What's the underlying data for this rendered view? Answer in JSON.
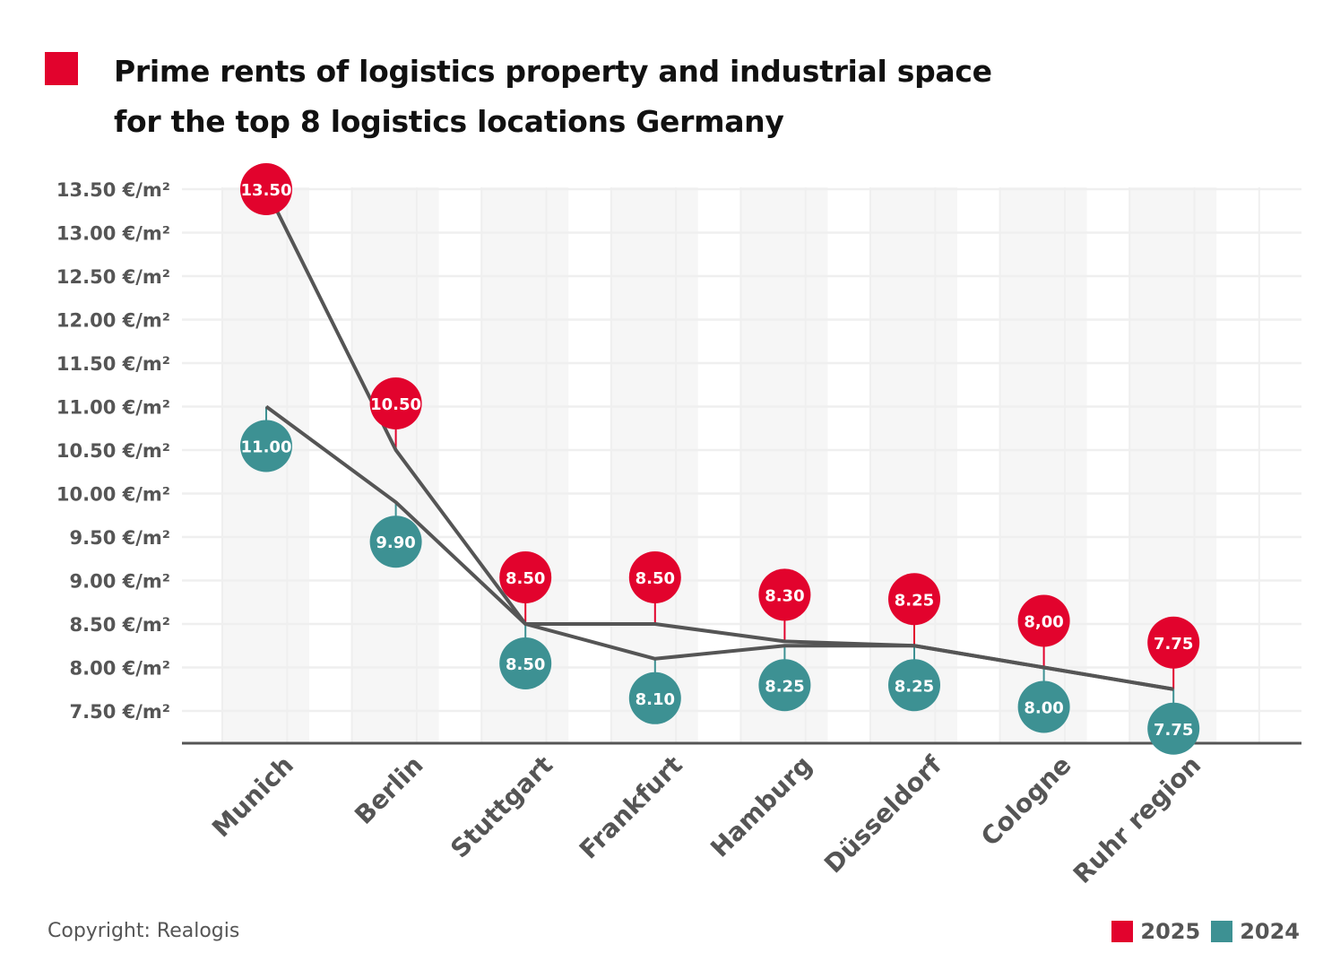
{
  "header": {
    "title_line1": "Prime rents of logistics property and industrial space",
    "title_line2": "for the top 8 logistics locations Germany"
  },
  "footer": {
    "copyright": "Copyright: Realogis"
  },
  "colors": {
    "accent_2025": "#e2032d",
    "accent_2024": "#3d9193",
    "line": "#555555",
    "axis_text": "#555555",
    "band": "#f6f6f6",
    "grid": "#efefef"
  },
  "legend": [
    {
      "label": "2025",
      "color": "#e2032d"
    },
    {
      "label": "2024",
      "color": "#3d9193"
    }
  ],
  "chart_data": {
    "type": "line",
    "title": "Prime rents of logistics property and industrial space for the top 8 logistics locations Germany",
    "xlabel": "",
    "ylabel": "",
    "categories": [
      "Munich",
      "Berlin",
      "Stuttgart",
      "Frankfurt",
      "Hamburg",
      "Düsseldorf",
      "Cologne",
      "Ruhr region"
    ],
    "series": [
      {
        "name": "2025",
        "color": "#e2032d",
        "values": [
          13.5,
          10.5,
          8.5,
          8.5,
          8.3,
          8.25,
          8.0,
          7.75
        ],
        "data_labels": [
          "13.50",
          "10.50",
          "8.50",
          "8.50",
          "8.30",
          "8.25",
          "8,00",
          "7.75"
        ]
      },
      {
        "name": "2024",
        "color": "#3d9193",
        "values": [
          11.0,
          9.9,
          8.5,
          8.1,
          8.25,
          8.25,
          8.0,
          7.75
        ],
        "data_labels": [
          "11.00",
          "9.90",
          "8.50",
          "8.10",
          "8.25",
          "8.25",
          "8.00",
          "7.75"
        ]
      }
    ],
    "y_ticks": [
      13.5,
      13.0,
      12.5,
      12.0,
      11.5,
      11.0,
      10.5,
      10.0,
      9.5,
      9.0,
      8.5,
      8.0,
      7.5
    ],
    "y_tick_labels": [
      "13.50 €/m²",
      "13.00 €/m²",
      "12.50 €/m²",
      "12.00 €/m²",
      "11.50 €/m²",
      "11.00 €/m²",
      "10.50 €/m²",
      "10.00 €/m²",
      "9.50 €/m²",
      "9.00 €/m²",
      "8.50 €/m²",
      "8.00 €/m²",
      "7.50 €/m²"
    ],
    "ylim": [
      7.125,
      13.5
    ],
    "grid": true,
    "legend_position": "bottom-right"
  }
}
